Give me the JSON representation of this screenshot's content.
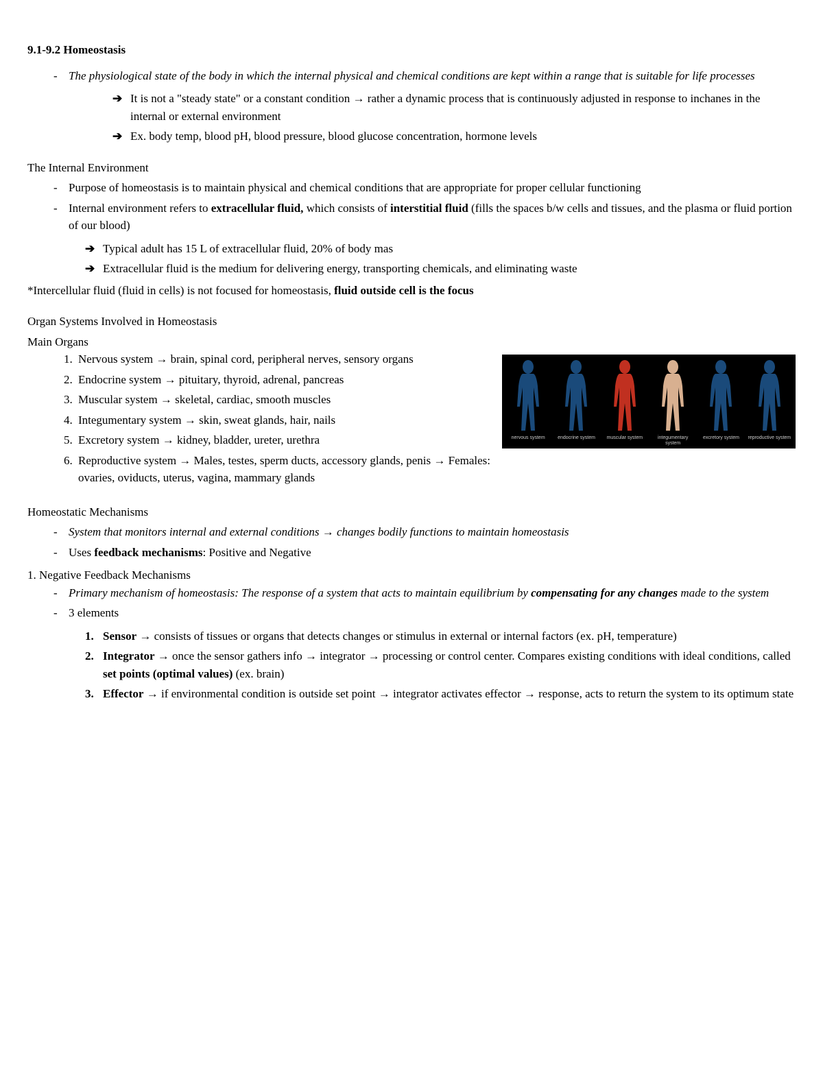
{
  "title": "9.1-9.2 Homeostasis",
  "def": {
    "main": "The physiological state of the body in which the internal physical and chemical conditions are kept within a range that is suitable for life processes",
    "sub1": "It is not a \"steady state\" or a constant condition → rather a dynamic process that is continuously adjusted in response to inchanes in the internal or external environment",
    "sub2": "Ex. body temp, blood pH, blood pressure, blood glucose concentration, hormone levels"
  },
  "internal_env": {
    "heading": "The Internal Environment",
    "p1": "Purpose of homeostasis is to maintain physical and chemical conditions that are appropriate for proper cellular functioning",
    "p2a": "Internal environment refers to ",
    "p2b": "extracellular fluid,",
    "p2c": " which consists of ",
    "p2d": "interstitial fluid",
    "p2e": " (fills the spaces b/w cells and tissues, and the plasma or fluid portion of our blood)",
    "sub1": "Typical adult has 15 L of extracellular fluid, 20% of body mas",
    "sub2": "Extracellular fluid is the medium for delivering energy, transporting chemicals, and eliminating waste",
    "note_a": "*Intercellular fluid (fluid in cells) is not focused for homeostasis, ",
    "note_b": "fluid outside cell is the focus"
  },
  "organs": {
    "heading": "Organ Systems Involved in Homeostasis",
    "sub": "Main Organs",
    "items": [
      "Nervous system → brain, spinal cord, peripheral nerves, sensory organs",
      "Endocrine system → pituitary, thyroid, adrenal, pancreas",
      "Muscular system → skeletal, cardiac, smooth muscles",
      "Integumentary system → skin, sweat glands, hair, nails",
      "Excretory system → kidney, bladder, ureter, urethra",
      "Reproductive system → Males, testes, sperm ducts, accessory glands, penis → Females: ovaries, oviducts, uterus, vagina, mammary glands"
    ],
    "fig_labels": [
      "nervous system",
      "endocrine system",
      "muscular system",
      "integumentary system",
      "excretory system",
      "reproductive system"
    ],
    "fig_colors": [
      "#1a4a7a",
      "#1a4a7a",
      "#c03020",
      "#d8b090",
      "#1a4a7a",
      "#1a4a7a"
    ]
  },
  "mechanisms": {
    "heading": "Homeostatic Mechanisms",
    "def": "System that monitors internal and external conditions → changes bodily functions to maintain homeostasis",
    "uses_a": "Uses ",
    "uses_b": "feedback mechanisms",
    "uses_c": ": Positive and Negative",
    "neg_heading": "1. Negative Feedback Mechanisms",
    "neg_def_a": "Primary mechanism of homeostasis: The response of a system that acts to maintain equilibrium by ",
    "neg_def_b": "compensating for any changes",
    "neg_def_c": " made to the system",
    "elements_label": "3 elements",
    "el1_name": "Sensor",
    "el1_text": " → consists of tissues or organs that detects changes or stimulus in external or internal factors (ex. pH, temperature)",
    "el2_name": "Integrator",
    "el2_text_a": " → once the sensor gathers info → integrator → processing or control center. Compares existing conditions with ideal conditions, called ",
    "el2_text_b": "set points (optimal values)",
    "el2_text_c": " (ex. brain)",
    "el3_name": "Effector",
    "el3_text": " → if environmental condition is outside set point → integrator activates effector → response, acts to return the system to its optimum state"
  }
}
